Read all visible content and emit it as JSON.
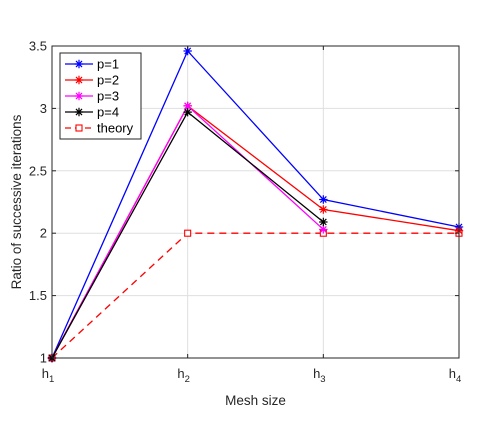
{
  "chart_data": {
    "type": "line",
    "title": "",
    "xlabel": "Mesh size",
    "ylabel": "Ratio of successive iterations",
    "categories": [
      "h1",
      "h2",
      "h3",
      "h4"
    ],
    "x_ticks": [
      {
        "base": "h",
        "sub": "1"
      },
      {
        "base": "h",
        "sub": "2"
      },
      {
        "base": "h",
        "sub": "3"
      },
      {
        "base": "h",
        "sub": "4"
      }
    ],
    "ylim": [
      1,
      3.5
    ],
    "yticks": [
      "1",
      "1.5",
      "2",
      "2.5",
      "3",
      "3.5"
    ],
    "grid": true,
    "legend_position": "top-left",
    "series": [
      {
        "name": "p=1",
        "values": [
          1,
          3.46,
          2.27,
          2.05
        ],
        "color": "#0000ff",
        "marker": "asterisk",
        "dash": "solid"
      },
      {
        "name": "p=2",
        "values": [
          1,
          3.02,
          2.19,
          2.02
        ],
        "color": "#ff0000",
        "marker": "asterisk",
        "dash": "solid"
      },
      {
        "name": "p=3",
        "values": [
          1,
          3.02,
          2.03,
          null
        ],
        "color": "#ff00ff",
        "marker": "asterisk",
        "dash": "solid"
      },
      {
        "name": "p=4",
        "values": [
          1,
          2.97,
          2.09,
          null
        ],
        "color": "#000000",
        "marker": "asterisk",
        "dash": "solid"
      },
      {
        "name": "theory",
        "values": [
          1,
          2,
          2,
          2
        ],
        "color": "#ff0000",
        "marker": "square",
        "dash": "dashed"
      }
    ]
  }
}
